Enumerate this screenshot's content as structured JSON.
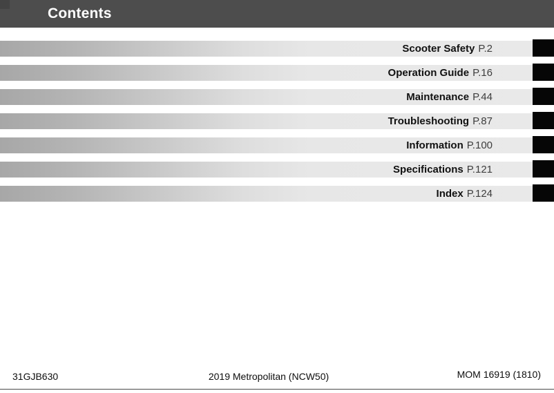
{
  "header": {
    "title": "Contents"
  },
  "toc": {
    "items": [
      {
        "label": "Scooter Safety",
        "page": "P.2"
      },
      {
        "label": "Operation Guide",
        "page": "P.16"
      },
      {
        "label": "Maintenance",
        "page": "P.44"
      },
      {
        "label": "Troubleshooting",
        "page": "P.87"
      },
      {
        "label": "Information",
        "page": "P.100"
      },
      {
        "label": "Specifications",
        "page": "P.121"
      },
      {
        "label": "Index",
        "page": "P.124"
      }
    ]
  },
  "footer": {
    "left": "31GJB630",
    "center": "2019 Metropolitan (NCW50)",
    "right": "MOM 16919 (1810)"
  },
  "colors": {
    "header_bg": "#4d4d4d",
    "bar_gradient_start": "#a7a7a7",
    "bar_gradient_end": "#e9e9e9",
    "chapter_tab": "#060606",
    "title_text": "#ffffff"
  }
}
